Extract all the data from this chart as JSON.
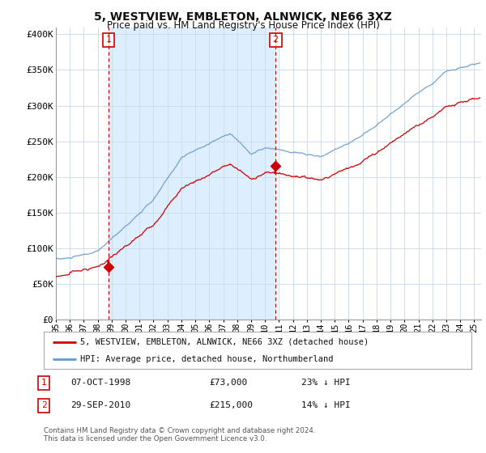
{
  "title": "5, WESTVIEW, EMBLETON, ALNWICK, NE66 3XZ",
  "subtitle": "Price paid vs. HM Land Registry's House Price Index (HPI)",
  "ylabel_ticks": [
    "£0",
    "£50K",
    "£100K",
    "£150K",
    "£200K",
    "£250K",
    "£300K",
    "£350K",
    "£400K"
  ],
  "ytick_values": [
    0,
    50000,
    100000,
    150000,
    200000,
    250000,
    300000,
    350000,
    400000
  ],
  "ylim": [
    0,
    410000
  ],
  "xlim_start": 1995.0,
  "xlim_end": 2025.5,
  "sale1_year": 1998.77,
  "sale1_price": 73000,
  "sale2_year": 2010.75,
  "sale2_price": 215000,
  "property_line_color": "#cc0000",
  "hpi_line_color": "#6699cc",
  "shade_color": "#ddeeff",
  "legend_property_label": "5, WESTVIEW, EMBLETON, ALNWICK, NE66 3XZ (detached house)",
  "legend_hpi_label": "HPI: Average price, detached house, Northumberland",
  "table_row1": [
    "1",
    "07-OCT-1998",
    "£73,000",
    "23% ↓ HPI"
  ],
  "table_row2": [
    "2",
    "29-SEP-2010",
    "£215,000",
    "14% ↓ HPI"
  ],
  "footnote": "Contains HM Land Registry data © Crown copyright and database right 2024.\nThis data is licensed under the Open Government Licence v3.0.",
  "bg_color": "#ffffff",
  "grid_color": "#ccddee"
}
